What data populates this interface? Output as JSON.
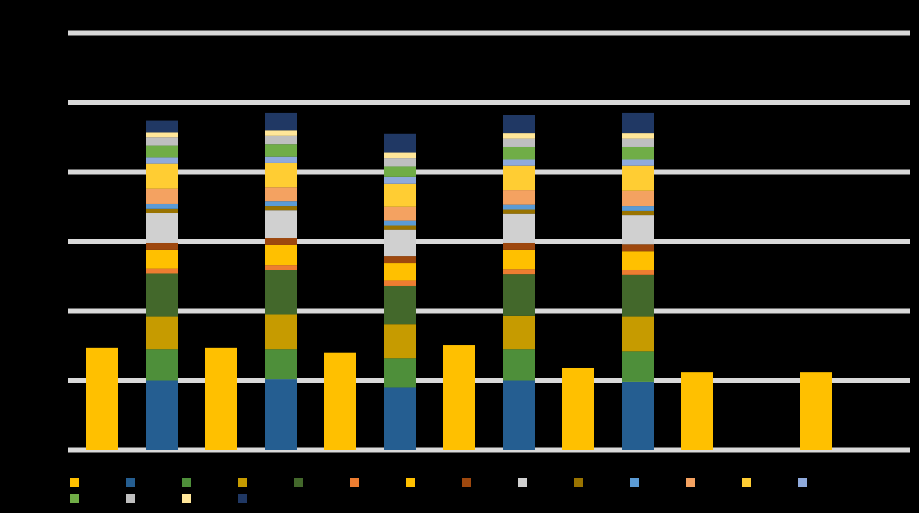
{
  "chart_data": {
    "type": "bar",
    "ylim": [
      0,
      6
    ],
    "yticks": [
      0,
      1,
      2,
      3,
      4,
      5,
      6
    ],
    "grid": true,
    "bars": {
      "color": "#ffc000",
      "values": [
        1.47,
        1.47,
        1.4,
        1.51,
        1.18,
        1.12,
        1.12
      ]
    },
    "stack": [
      {
        "color": "#255e91",
        "values": [
          1.0,
          1.02,
          0.9,
          1.0,
          0.98,
          0,
          0
        ]
      },
      {
        "color": "#4e8f3a",
        "values": [
          0.45,
          0.43,
          0.42,
          0.45,
          0.44,
          0,
          0
        ]
      },
      {
        "color": "#c69b00",
        "values": [
          0.47,
          0.5,
          0.49,
          0.48,
          0.5,
          0,
          0
        ]
      },
      {
        "color": "#43682b",
        "values": [
          0.62,
          0.64,
          0.55,
          0.6,
          0.6,
          0,
          0
        ]
      },
      {
        "color": "#ed7d31",
        "values": [
          0.07,
          0.07,
          0.08,
          0.07,
          0.07,
          0,
          0
        ]
      },
      {
        "color": "#ffc000",
        "values": [
          0.27,
          0.29,
          0.25,
          0.28,
          0.27,
          0,
          0
        ]
      },
      {
        "color": "#9e480e",
        "values": [
          0.1,
          0.1,
          0.1,
          0.1,
          0.1,
          0,
          0
        ]
      },
      {
        "color": "#d0d0d0",
        "values": [
          0.43,
          0.4,
          0.38,
          0.42,
          0.42,
          0,
          0
        ]
      },
      {
        "color": "#997300",
        "values": [
          0.06,
          0.06,
          0.06,
          0.06,
          0.06,
          0,
          0
        ]
      },
      {
        "color": "#5b9bd5",
        "values": [
          0.07,
          0.07,
          0.07,
          0.07,
          0.07,
          0,
          0
        ]
      },
      {
        "color": "#f4a261",
        "values": [
          0.22,
          0.2,
          0.2,
          0.21,
          0.22,
          0,
          0
        ]
      },
      {
        "color": "#ffcd33",
        "values": [
          0.36,
          0.35,
          0.33,
          0.35,
          0.36,
          0,
          0
        ]
      },
      {
        "color": "#8faadc",
        "values": [
          0.09,
          0.09,
          0.1,
          0.09,
          0.09,
          0,
          0
        ]
      },
      {
        "color": "#70ad47",
        "values": [
          0.17,
          0.18,
          0.15,
          0.18,
          0.18,
          0,
          0
        ]
      },
      {
        "color": "#bfbfbf",
        "values": [
          0.12,
          0.12,
          0.12,
          0.12,
          0.12,
          0,
          0
        ]
      },
      {
        "color": "#ffe699",
        "values": [
          0.07,
          0.08,
          0.08,
          0.08,
          0.08,
          0,
          0
        ]
      },
      {
        "color": "#203864",
        "values": [
          0.17,
          0.25,
          0.27,
          0.26,
          0.29,
          0,
          0
        ]
      }
    ]
  }
}
